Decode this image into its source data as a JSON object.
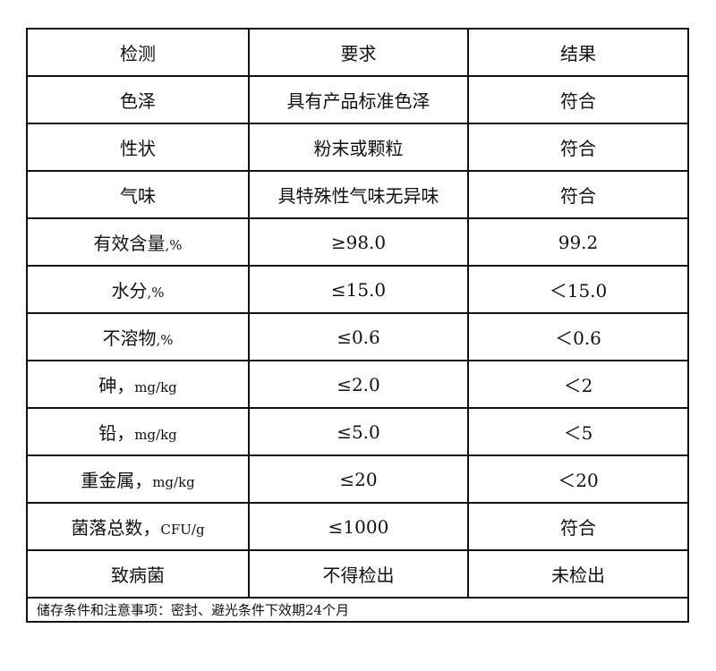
{
  "header": [
    "检测",
    "要求",
    "结果"
  ],
  "rows": [
    {
      "item": "色泽",
      "unit": "",
      "requirement": "具有产品标准色泽",
      "result": "符合"
    },
    {
      "item": "性状",
      "unit": "",
      "requirement": "粉末或颗粒",
      "result": "符合"
    },
    {
      "item": "气味",
      "unit": "",
      "requirement": "具特殊性气味无异味",
      "result": "符合"
    },
    {
      "item": "有效含量",
      "unit": ",%",
      "requirement": "≥98.0",
      "result": "99.2"
    },
    {
      "item": "水分",
      "unit": ",%",
      "requirement": "≤15.0",
      "result": "＜15.0"
    },
    {
      "item": "不溶物",
      "unit": ",%",
      "requirement": "≤0.6",
      "result": "＜0.6"
    },
    {
      "item": "砷，",
      "unit": "mg/kg",
      "requirement": "≤2.0",
      "result": "＜2"
    },
    {
      "item": "铅，",
      "unit": "mg/kg",
      "requirement": "≤5.0",
      "result": "＜5"
    },
    {
      "item": "重金属，",
      "unit": "mg/kg",
      "requirement": "≤20",
      "result": "＜20"
    },
    {
      "item": "菌落总数，",
      "unit": "CFU/g",
      "requirement": "≤1000",
      "result": "符合"
    },
    {
      "item": "致病菌",
      "unit": "",
      "requirement": "不得检出",
      "result": "未检出"
    }
  ],
  "note": "储存条件和注意事项：密封、避光条件下效期24个月"
}
